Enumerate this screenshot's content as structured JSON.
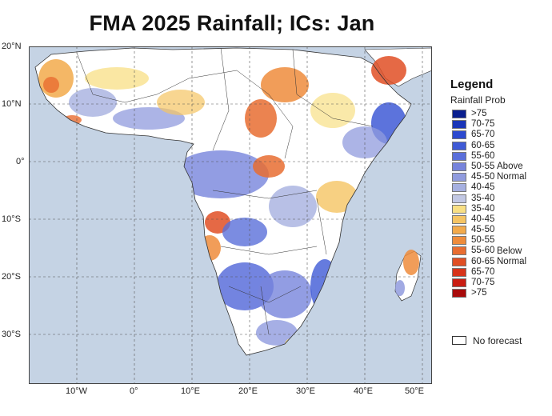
{
  "title": "FMA 2025 Rainfall; ICs: Jan",
  "map": {
    "y_axis_labels": [
      "20°N",
      "10°N",
      "0°",
      "10°S",
      "20°S",
      "30°S"
    ],
    "x_axis_labels": [
      "10°W",
      "0°",
      "10°E",
      "20°E",
      "30°E",
      "40°E",
      "50°E"
    ],
    "ocean_color": "#c5d3e4",
    "land_color": "#ffffff"
  },
  "legend": {
    "title": "Legend",
    "subtitle": "Rainfall Prob",
    "above_label_1": "Above",
    "above_label_2": "Normal",
    "below_label_1": "Below",
    "below_label_2": "Normal",
    "items": [
      {
        "label": ">75",
        "color": "#0a1f8f"
      },
      {
        "label": "70-75",
        "color": "#1a35b8"
      },
      {
        "label": "65-70",
        "color": "#2c49cf"
      },
      {
        "label": "60-65",
        "color": "#3f5ad6"
      },
      {
        "label": "55-60",
        "color": "#5a6fda"
      },
      {
        "label": "50-55",
        "color": "#7784dc"
      },
      {
        "label": "45-50",
        "color": "#909bde"
      },
      {
        "label": "40-45",
        "color": "#a6b0e0"
      },
      {
        "label": "35-40",
        "color": "#c2c8e4"
      },
      {
        "label": "35-40",
        "color": "#f8df84"
      },
      {
        "label": "40-45",
        "color": "#f5c463"
      },
      {
        "label": "45-50",
        "color": "#f2aa4b"
      },
      {
        "label": "50-55",
        "color": "#ee8c3c"
      },
      {
        "label": "55-60",
        "color": "#e86d31"
      },
      {
        "label": "60-65",
        "color": "#e04f25"
      },
      {
        "label": "65-70",
        "color": "#d7341b"
      },
      {
        "label": "70-75",
        "color": "#c91d12"
      },
      {
        "label": ">75",
        "color": "#a80b0b"
      }
    ],
    "no_forecast_label": "No forecast"
  }
}
